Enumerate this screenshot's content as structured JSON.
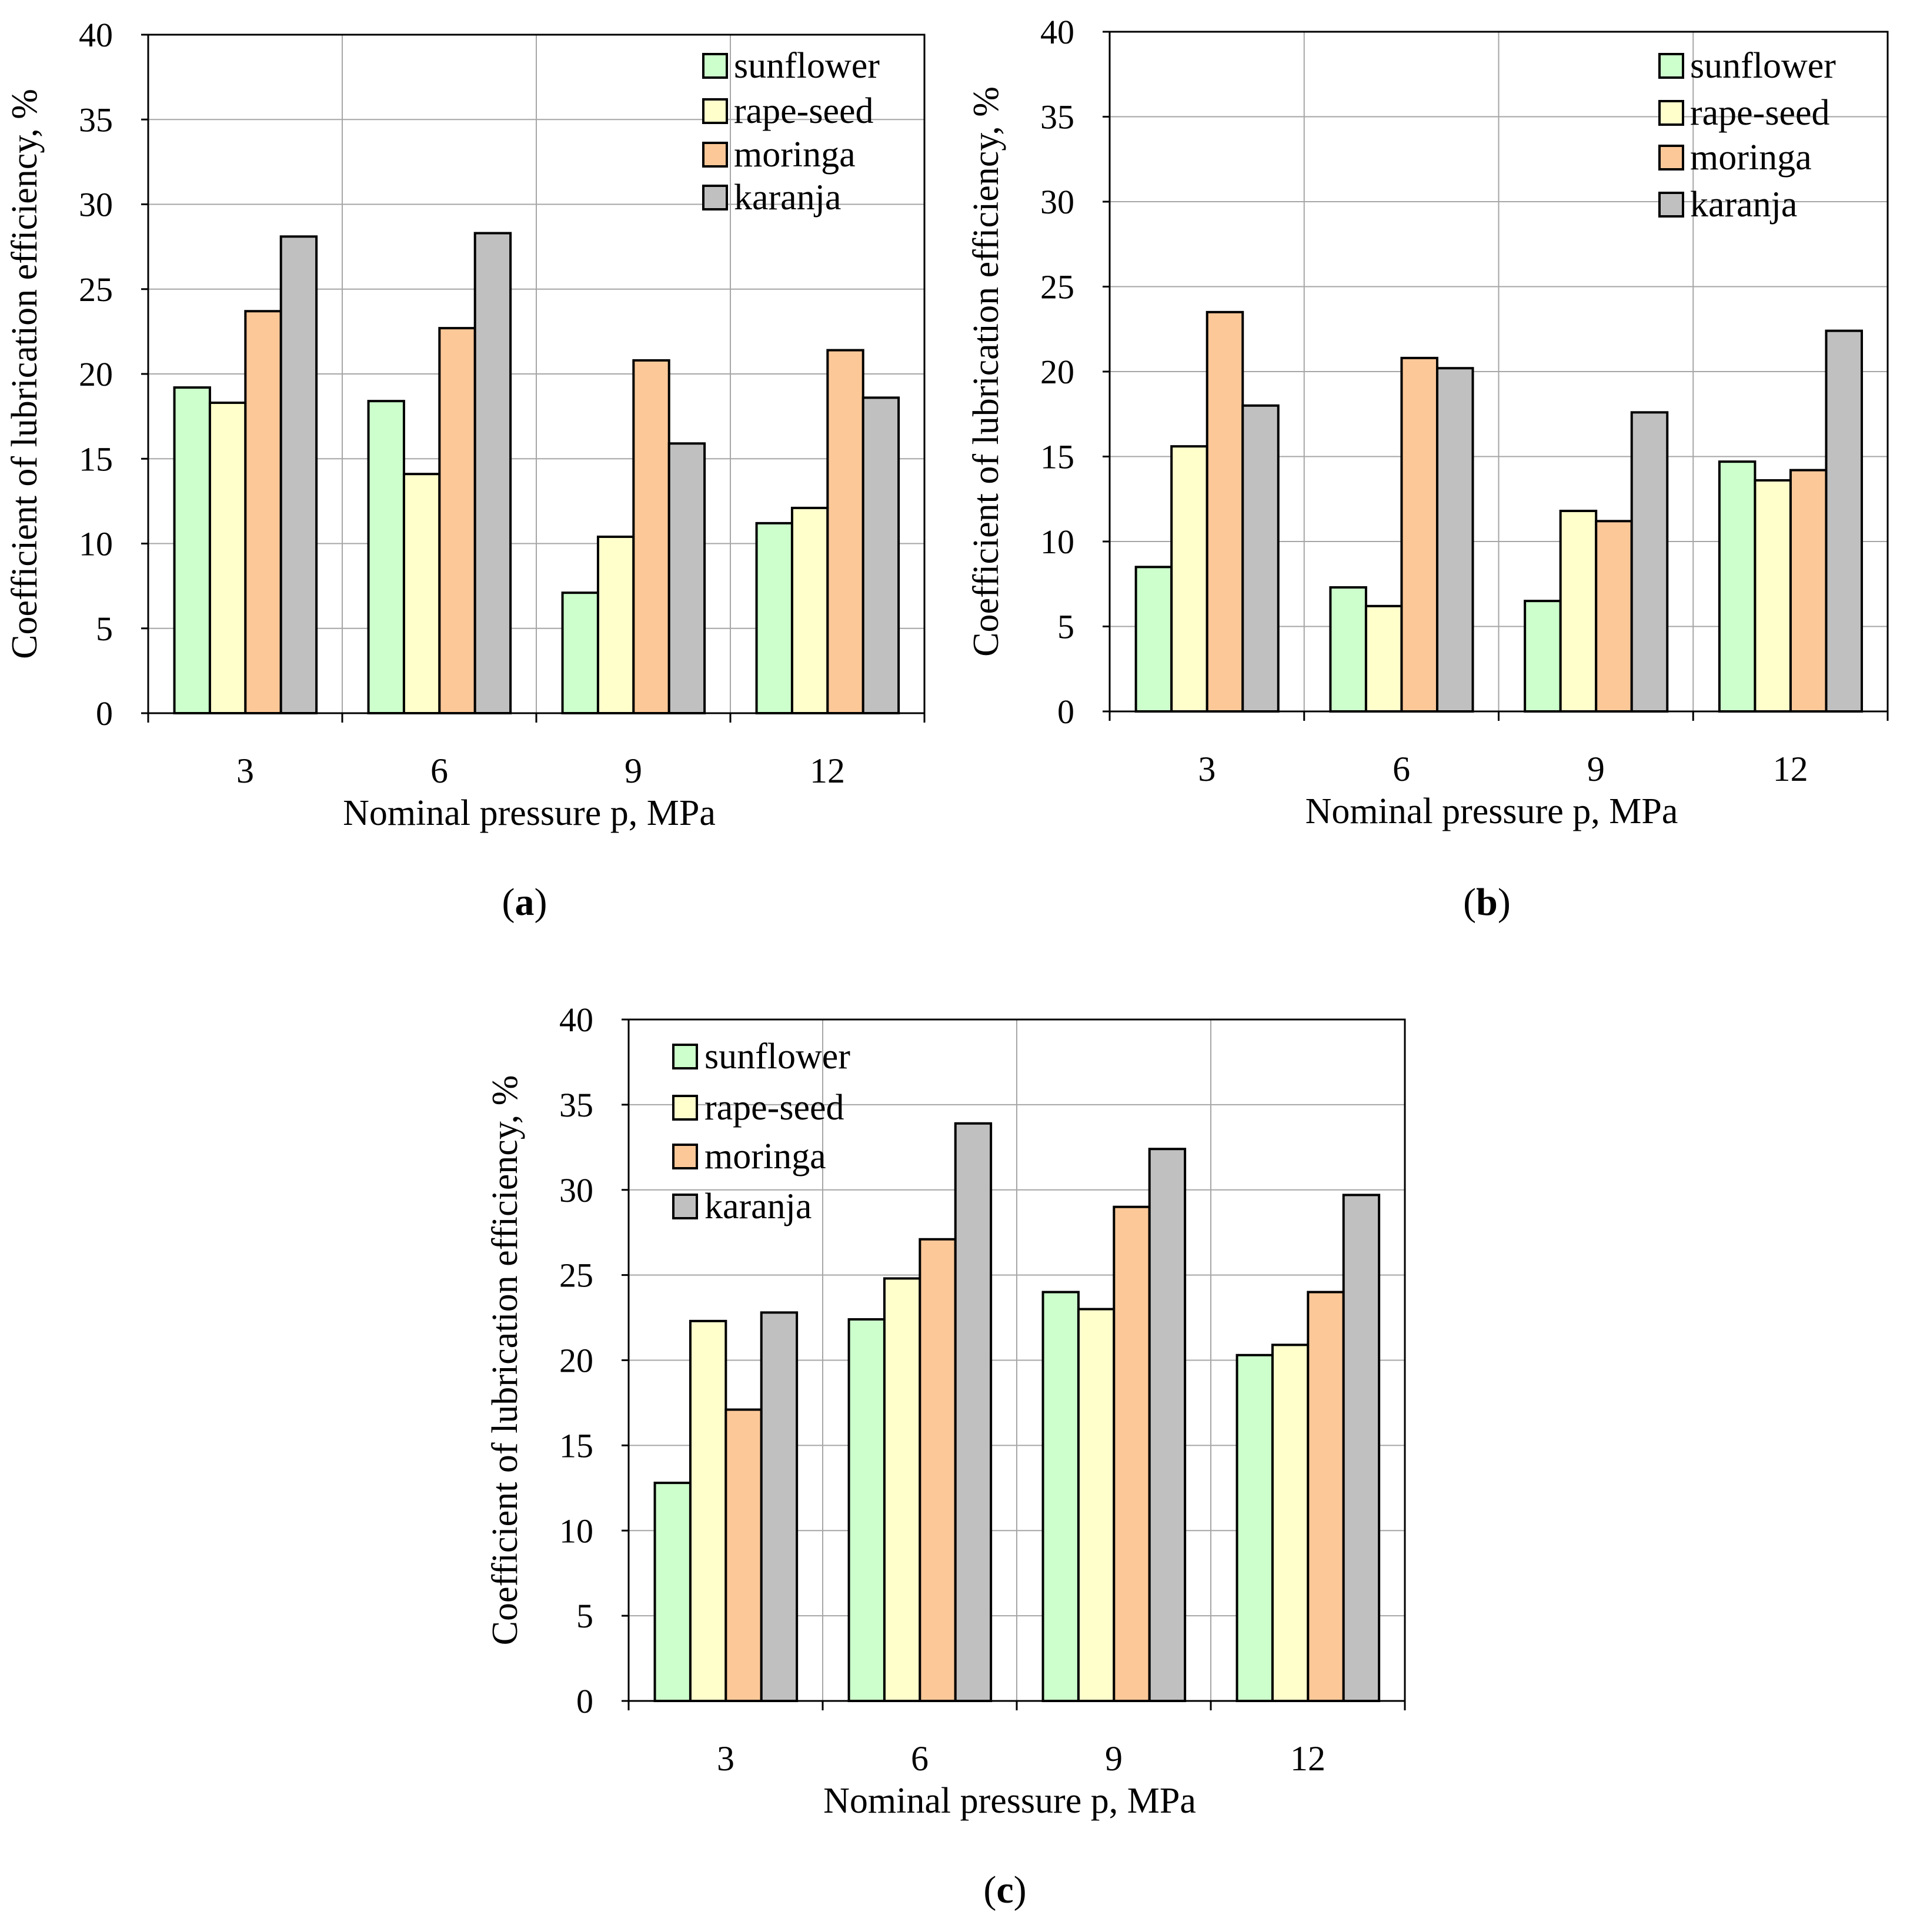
{
  "figure": {
    "panel_labels": [
      "a",
      "b",
      "c"
    ]
  },
  "colors": {
    "sunflower": "#ccffcc",
    "rape-seed": "#ffffcc",
    "moringa": "#fcc898",
    "karanja": "#c0c0c0",
    "axis": "#000000",
    "grid": "#a6a6a6"
  },
  "chart_data": [
    {
      "type": "bar",
      "panel": "a",
      "categories": [
        "3",
        "6",
        "9",
        "12"
      ],
      "xlabel": "Nominal pressure p, MPa",
      "ylabel": "Coefficient of lubrication efficiency, %",
      "ylim": [
        0,
        40
      ],
      "yticks": [
        "0",
        "5",
        "10",
        "15",
        "20",
        "25",
        "30",
        "35",
        "40"
      ],
      "grid": true,
      "legend_position": "top-right",
      "series": [
        {
          "name": "sunflower",
          "values": [
            19.2,
            18.4,
            7.1,
            11.2
          ]
        },
        {
          "name": "rape-seed",
          "values": [
            18.3,
            14.1,
            10.4,
            12.1
          ]
        },
        {
          "name": "moringa",
          "values": [
            23.7,
            22.7,
            20.8,
            21.4
          ]
        },
        {
          "name": "karanja",
          "values": [
            28.1,
            28.3,
            15.9,
            18.6
          ]
        }
      ]
    },
    {
      "type": "bar",
      "panel": "b",
      "categories": [
        "3",
        "6",
        "9",
        "12"
      ],
      "xlabel": "Nominal pressure p, MPa",
      "ylabel": "Coefficient of lubrication efficiency, %",
      "ylim": [
        0,
        40
      ],
      "yticks": [
        "0",
        "5",
        "10",
        "15",
        "20",
        "25",
        "30",
        "35",
        "40"
      ],
      "grid": true,
      "legend_position": "top-right",
      "series": [
        {
          "name": "sunflower",
          "values": [
            8.5,
            7.3,
            6.5,
            14.7
          ]
        },
        {
          "name": "rape-seed",
          "values": [
            15.6,
            6.2,
            11.8,
            13.6
          ]
        },
        {
          "name": "moringa",
          "values": [
            23.5,
            20.8,
            11.2,
            14.2
          ]
        },
        {
          "name": "karanja",
          "values": [
            18.0,
            20.2,
            17.6,
            22.4
          ]
        }
      ]
    },
    {
      "type": "bar",
      "panel": "c",
      "categories": [
        "3",
        "6",
        "9",
        "12"
      ],
      "xlabel": "Nominal pressure p, MPa",
      "ylabel": "Coefficient of lubrication efficiency, %",
      "ylim": [
        0,
        40
      ],
      "yticks": [
        "0",
        "5",
        "10",
        "15",
        "20",
        "25",
        "30",
        "35",
        "40"
      ],
      "grid": true,
      "legend_position": "top-left",
      "series": [
        {
          "name": "sunflower",
          "values": [
            12.8,
            22.4,
            24.0,
            20.3
          ]
        },
        {
          "name": "rape-seed",
          "values": [
            22.3,
            24.8,
            23.0,
            20.9
          ]
        },
        {
          "name": "moringa",
          "values": [
            17.1,
            27.1,
            29.0,
            24.0
          ]
        },
        {
          "name": "karanja",
          "values": [
            22.8,
            33.9,
            32.4,
            29.7
          ]
        }
      ]
    }
  ]
}
